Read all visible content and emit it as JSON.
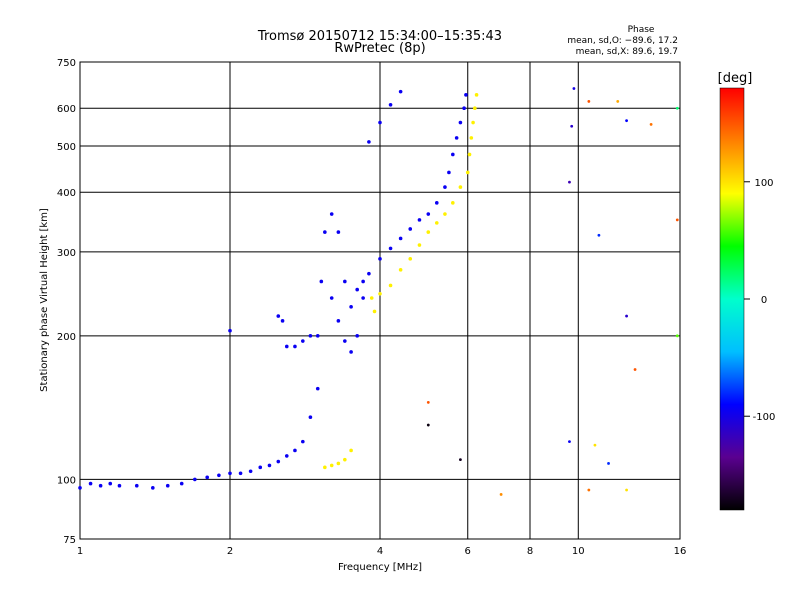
{
  "chart_data": {
    "type": "scatter",
    "title": "Tromsø 20150712 15:34:00–15:35:43",
    "subtitle": "RwPretec (8p)",
    "xlabel": "Frequency [MHz]",
    "ylabel": "Stationary phase Virtual Height [km]",
    "x_scale": "log",
    "y_scale": "log",
    "xlim": [
      1,
      16
    ],
    "ylim": [
      75,
      750
    ],
    "x_ticks": [
      1,
      2,
      4,
      6,
      8,
      10,
      16
    ],
    "y_ticks": [
      75,
      100,
      200,
      300,
      400,
      500,
      600,
      750
    ],
    "grid": true,
    "legend": {
      "heading": "Phase",
      "lines": [
        "mean, sd,O: −89.6, 17.2",
        "mean, sd,X: 89.6, 19.7"
      ]
    },
    "colorbar": {
      "label": "[deg]",
      "range": [
        -180,
        180
      ],
      "ticks": [
        100,
        0,
        -100
      ],
      "colormap": [
        "#000000",
        "#5a0090",
        "#0000ff",
        "#00bfff",
        "#00ffcc",
        "#00ff00",
        "#ffff00",
        "#ff8000",
        "#ff0000"
      ]
    },
    "colors": {
      "O_trace_phase_deg": -95,
      "X_trace_phase_deg": 95,
      "E_trace_phase_deg": 60
    },
    "series": [
      {
        "name": "O",
        "phase_deg": -95,
        "points": [
          [
            1.0,
            96
          ],
          [
            1.05,
            98
          ],
          [
            1.1,
            97
          ],
          [
            1.15,
            98
          ],
          [
            1.2,
            97
          ],
          [
            1.3,
            97
          ],
          [
            1.4,
            96
          ],
          [
            1.5,
            97
          ],
          [
            1.6,
            98
          ],
          [
            1.7,
            100
          ],
          [
            1.8,
            101
          ],
          [
            1.9,
            102
          ],
          [
            2.0,
            103
          ],
          [
            2.1,
            103
          ],
          [
            2.2,
            104
          ],
          [
            2.3,
            106
          ],
          [
            2.4,
            107
          ],
          [
            2.5,
            109
          ],
          [
            2.6,
            112
          ],
          [
            2.7,
            115
          ],
          [
            2.8,
            120
          ],
          [
            2.9,
            135
          ],
          [
            3.0,
            155
          ],
          [
            3.0,
            200
          ],
          [
            3.05,
            260
          ],
          [
            3.1,
            330
          ],
          [
            3.2,
            360
          ],
          [
            3.3,
            330
          ],
          [
            3.4,
            260
          ],
          [
            3.5,
            230
          ],
          [
            3.6,
            250
          ],
          [
            3.7,
            260
          ],
          [
            3.8,
            270
          ],
          [
            4.0,
            290
          ],
          [
            4.2,
            305
          ],
          [
            4.4,
            320
          ],
          [
            4.6,
            335
          ],
          [
            4.8,
            350
          ],
          [
            5.0,
            360
          ],
          [
            5.2,
            380
          ],
          [
            5.4,
            410
          ],
          [
            5.5,
            440
          ],
          [
            5.6,
            480
          ],
          [
            5.7,
            520
          ],
          [
            5.8,
            560
          ],
          [
            5.9,
            600
          ],
          [
            5.95,
            640
          ],
          [
            3.8,
            510
          ],
          [
            4.0,
            560
          ],
          [
            4.2,
            610
          ],
          [
            4.4,
            650
          ],
          [
            2.0,
            205
          ],
          [
            2.5,
            220
          ],
          [
            2.55,
            215
          ],
          [
            2.6,
            190
          ],
          [
            2.7,
            190
          ],
          [
            2.8,
            195
          ],
          [
            2.9,
            200
          ],
          [
            3.2,
            240
          ],
          [
            3.3,
            215
          ],
          [
            3.4,
            195
          ],
          [
            3.5,
            185
          ],
          [
            3.6,
            200
          ],
          [
            3.7,
            240
          ]
        ]
      },
      {
        "name": "X",
        "phase_deg": 95,
        "points": [
          [
            3.85,
            240
          ],
          [
            3.9,
            225
          ],
          [
            4.0,
            245
          ],
          [
            4.2,
            255
          ],
          [
            4.4,
            275
          ],
          [
            4.6,
            290
          ],
          [
            4.8,
            310
          ],
          [
            5.0,
            330
          ],
          [
            5.2,
            345
          ],
          [
            5.4,
            360
          ],
          [
            5.6,
            380
          ],
          [
            5.8,
            410
          ],
          [
            6.0,
            440
          ],
          [
            6.05,
            480
          ],
          [
            6.1,
            520
          ],
          [
            6.15,
            560
          ],
          [
            6.2,
            600
          ],
          [
            6.25,
            640
          ],
          [
            3.1,
            106
          ],
          [
            3.2,
            107
          ],
          [
            3.3,
            108
          ],
          [
            3.4,
            110
          ],
          [
            3.5,
            115
          ]
        ]
      }
    ],
    "scattered_points": [
      {
        "x": 9.8,
        "y": 660,
        "phase_deg": -100
      },
      {
        "x": 9.7,
        "y": 550,
        "phase_deg": -110
      },
      {
        "x": 9.6,
        "y": 420,
        "phase_deg": -120
      },
      {
        "x": 10.5,
        "y": 620,
        "phase_deg": 150
      },
      {
        "x": 12.0,
        "y": 620,
        "phase_deg": 120
      },
      {
        "x": 12.5,
        "y": 565,
        "phase_deg": -90
      },
      {
        "x": 14.0,
        "y": 555,
        "phase_deg": 140
      },
      {
        "x": 15.8,
        "y": 600,
        "phase_deg": 20
      },
      {
        "x": 15.8,
        "y": 350,
        "phase_deg": 150
      },
      {
        "x": 11.0,
        "y": 325,
        "phase_deg": -80
      },
      {
        "x": 12.5,
        "y": 220,
        "phase_deg": -110
      },
      {
        "x": 15.8,
        "y": 200,
        "phase_deg": 60
      },
      {
        "x": 13.0,
        "y": 170,
        "phase_deg": 150
      },
      {
        "x": 9.6,
        "y": 120,
        "phase_deg": -95
      },
      {
        "x": 10.8,
        "y": 118,
        "phase_deg": 100
      },
      {
        "x": 11.5,
        "y": 108,
        "phase_deg": -80
      },
      {
        "x": 10.5,
        "y": 95,
        "phase_deg": 140
      },
      {
        "x": 12.5,
        "y": 95,
        "phase_deg": 100
      },
      {
        "x": 5.8,
        "y": 110,
        "phase_deg": -170
      },
      {
        "x": 7.0,
        "y": 93,
        "phase_deg": 130
      },
      {
        "x": 5.0,
        "y": 145,
        "phase_deg": 150
      },
      {
        "x": 5.0,
        "y": 130,
        "phase_deg": -175
      }
    ]
  }
}
